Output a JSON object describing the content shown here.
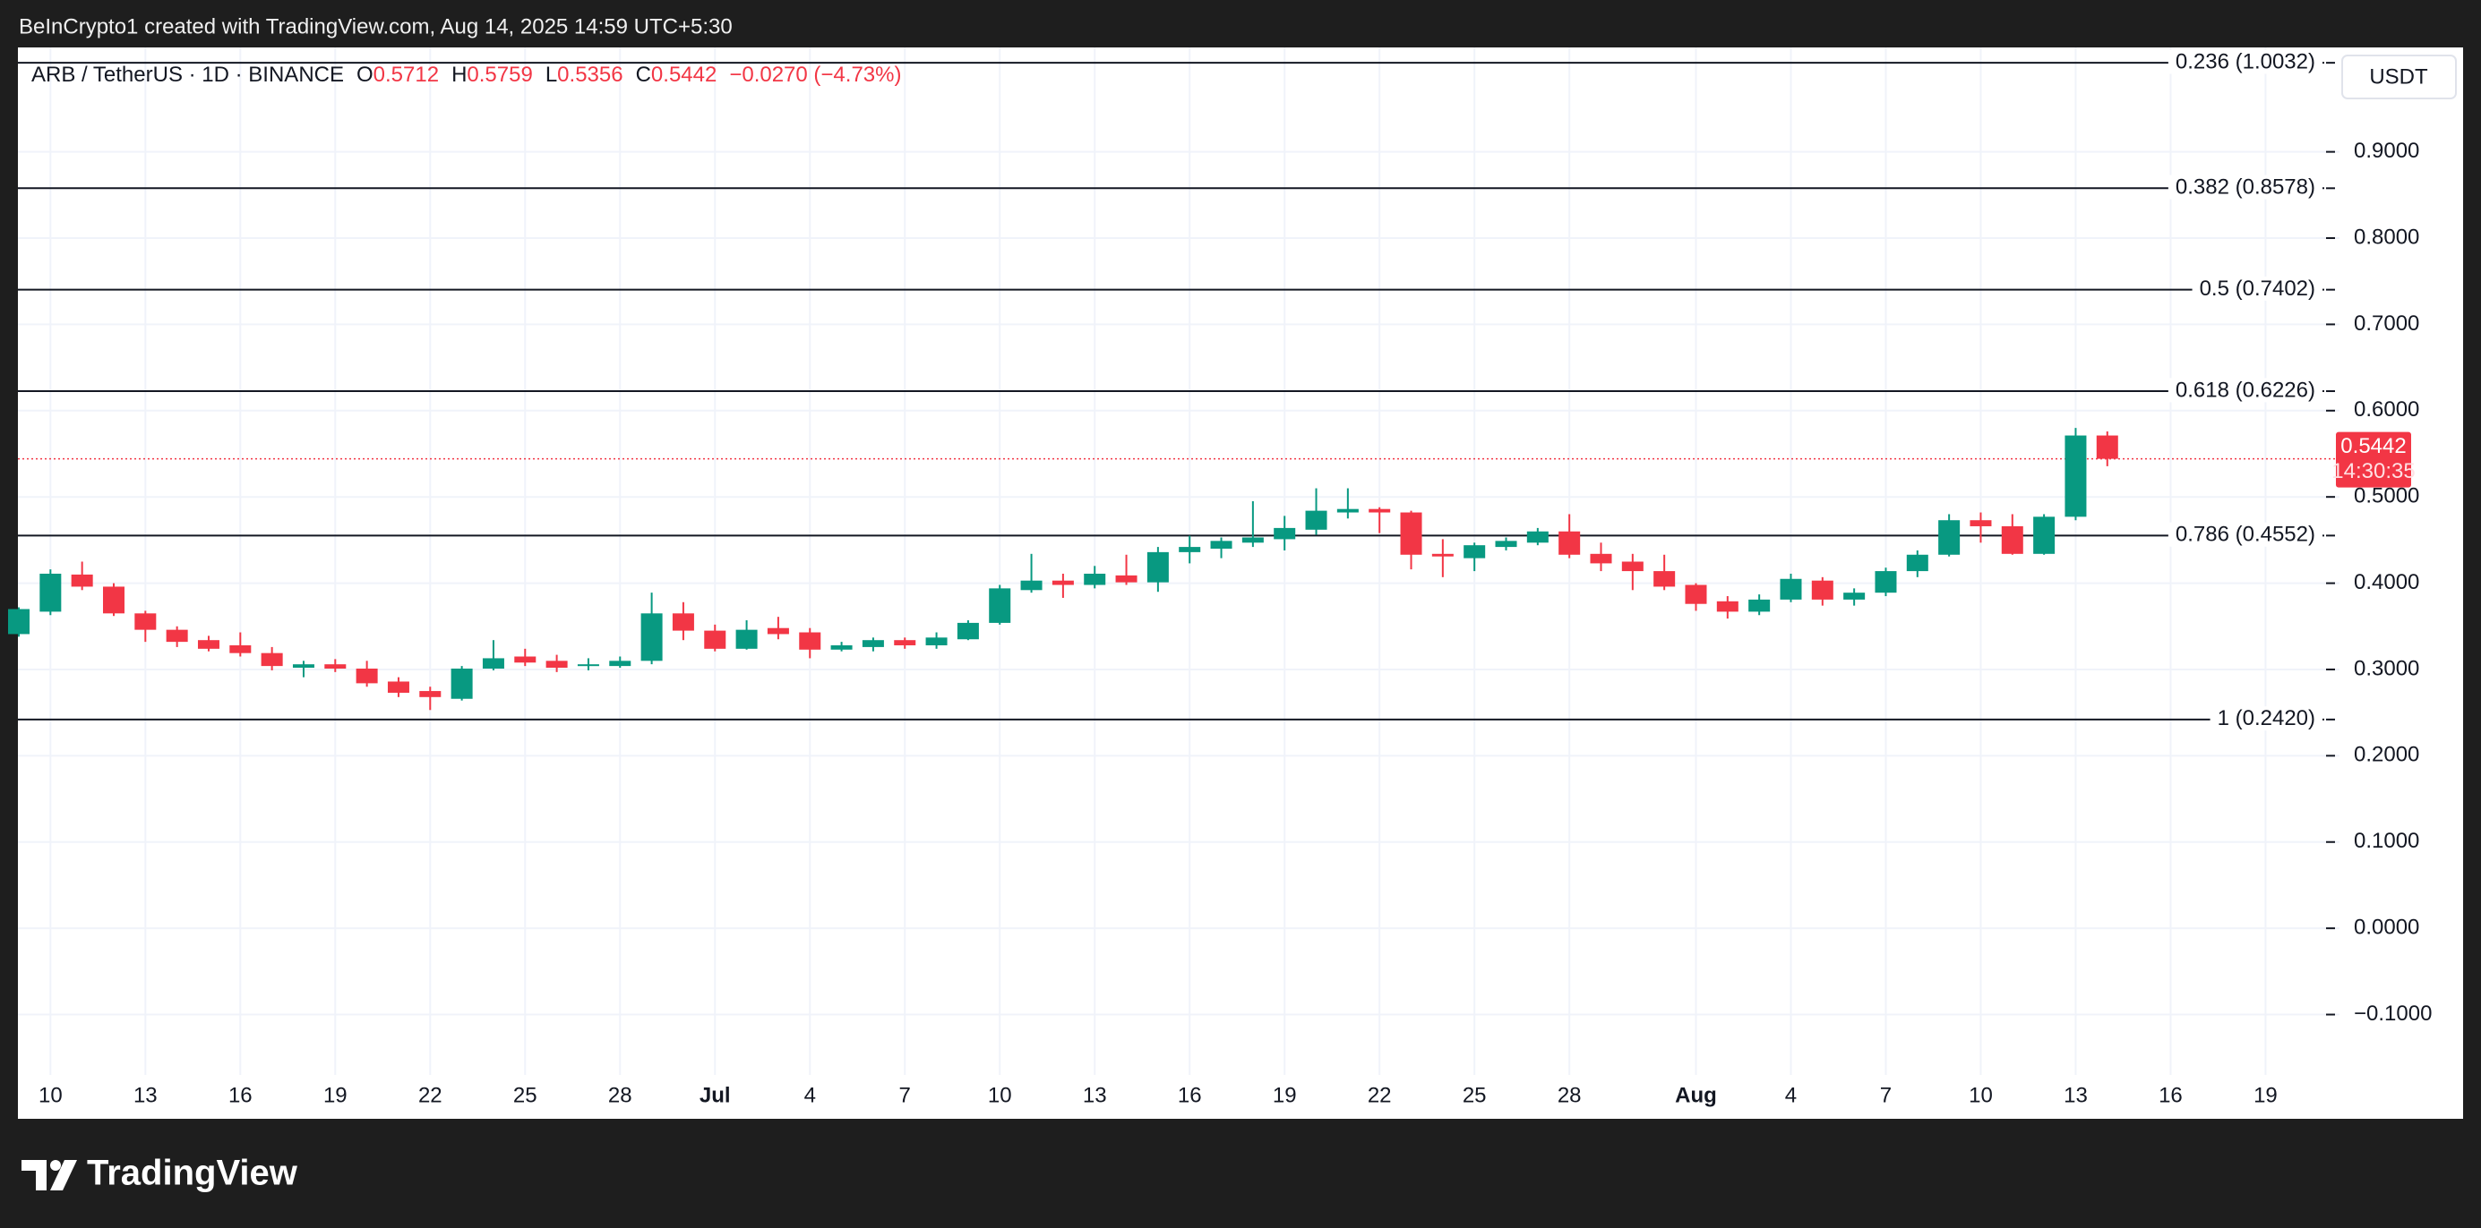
{
  "header": {
    "credit": "BeInCrypto1 created with TradingView.com, Aug 14, 2025 14:59 UTC+5:30"
  },
  "chart_data": {
    "type": "candlestick",
    "symbol": "ARB / TetherUS · 1D · BINANCE",
    "ohlc_legend": [
      {
        "key": "O",
        "value": "0.5712"
      },
      {
        "key": "H",
        "value": "0.5759"
      },
      {
        "key": "L",
        "value": "0.5356"
      },
      {
        "key": "C",
        "value": "0.5442"
      }
    ],
    "change": "−0.0270 (−4.73%)",
    "currency": "USDT",
    "up_color": "#089981",
    "down_color": "#f23645",
    "grid": true,
    "categories": [
      null,
      "10",
      null,
      null,
      "13",
      null,
      null,
      "16",
      null,
      null,
      "19",
      null,
      null,
      "22",
      null,
      null,
      "25",
      null,
      null,
      "28",
      null,
      null,
      "Jul",
      null,
      null,
      "4",
      null,
      null,
      "7",
      null,
      null,
      "10",
      null,
      null,
      "13",
      null,
      null,
      "16",
      null,
      null,
      "19",
      null,
      null,
      "22",
      null,
      null,
      "25",
      null,
      null,
      "28",
      null,
      null,
      null,
      "Aug",
      null,
      null,
      "4",
      null,
      null,
      "7",
      null,
      null,
      "10",
      null,
      null,
      "13",
      null,
      null,
      "16",
      null,
      null,
      "19"
    ],
    "open": [
      0.341,
      0.367,
      0.41,
      0.396,
      0.365,
      0.346,
      0.334,
      0.328,
      0.319,
      0.302,
      0.306,
      0.301,
      0.286,
      0.275,
      0.266,
      0.301,
      0.315,
      0.31,
      0.304,
      0.304,
      0.31,
      0.365,
      0.345,
      0.324,
      0.348,
      0.343,
      0.323,
      0.326,
      0.334,
      0.328,
      0.335,
      0.354,
      0.392,
      0.403,
      0.398,
      0.409,
      0.401,
      0.436,
      0.44,
      0.447,
      0.451,
      0.462,
      0.482,
      0.486,
      0.482,
      0.434,
      0.429,
      0.442,
      0.447,
      0.46,
      0.434,
      0.425,
      0.414,
      0.398,
      0.379,
      0.367,
      0.381,
      0.403,
      0.381,
      0.389,
      0.414,
      0.433,
      0.473,
      0.466,
      0.434,
      0.477,
      0.5712,
      null,
      null,
      null,
      null,
      null
    ],
    "high": [
      0.372,
      0.416,
      0.425,
      0.4,
      0.368,
      0.35,
      0.339,
      0.343,
      0.326,
      0.31,
      0.312,
      0.31,
      0.291,
      0.28,
      0.304,
      0.334,
      0.324,
      0.317,
      0.313,
      0.315,
      0.389,
      0.378,
      0.352,
      0.357,
      0.361,
      0.348,
      0.332,
      0.337,
      0.337,
      0.343,
      0.357,
      0.398,
      0.434,
      0.411,
      0.42,
      0.433,
      0.442,
      0.455,
      0.453,
      0.495,
      0.478,
      0.51,
      0.51,
      0.488,
      0.484,
      0.451,
      0.447,
      0.453,
      0.464,
      0.48,
      0.447,
      0.434,
      0.433,
      0.4,
      0.385,
      0.387,
      0.411,
      0.407,
      0.394,
      0.418,
      0.438,
      0.48,
      0.482,
      0.48,
      0.48,
      0.58,
      0.5759,
      null,
      null,
      null,
      null,
      null
    ],
    "low": [
      0.338,
      0.363,
      0.392,
      0.362,
      0.332,
      0.326,
      0.321,
      0.315,
      0.299,
      0.291,
      0.297,
      0.28,
      0.268,
      0.253,
      0.264,
      0.299,
      0.304,
      0.297,
      0.299,
      0.302,
      0.306,
      0.334,
      0.321,
      0.323,
      0.335,
      0.313,
      0.321,
      0.321,
      0.324,
      0.324,
      0.334,
      0.352,
      0.389,
      0.383,
      0.394,
      0.398,
      0.39,
      0.423,
      0.429,
      0.442,
      0.438,
      0.456,
      0.475,
      0.458,
      0.416,
      0.407,
      0.414,
      0.438,
      0.444,
      0.429,
      0.414,
      0.392,
      0.392,
      0.368,
      0.359,
      0.363,
      0.378,
      0.374,
      0.374,
      0.385,
      0.407,
      0.431,
      0.447,
      0.433,
      0.433,
      0.473,
      0.5356,
      null,
      null,
      null,
      null,
      null
    ],
    "close": [
      0.37,
      0.411,
      0.396,
      0.365,
      0.346,
      0.332,
      0.324,
      0.319,
      0.304,
      0.306,
      0.301,
      0.284,
      0.273,
      0.268,
      0.301,
      0.313,
      0.308,
      0.302,
      0.306,
      0.31,
      0.365,
      0.345,
      0.324,
      0.346,
      0.341,
      0.323,
      0.328,
      0.334,
      0.328,
      0.337,
      0.354,
      0.394,
      0.403,
      0.398,
      0.411,
      0.401,
      0.436,
      0.442,
      0.449,
      0.453,
      0.464,
      0.484,
      0.486,
      0.482,
      0.433,
      0.431,
      0.444,
      0.449,
      0.46,
      0.433,
      0.423,
      0.414,
      0.396,
      0.376,
      0.367,
      0.381,
      0.405,
      0.381,
      0.389,
      0.414,
      0.433,
      0.473,
      0.466,
      0.434,
      0.477,
      0.5712,
      0.5442,
      null,
      null,
      null,
      null,
      null
    ],
    "ylim": [
      -0.17,
      1.021
    ],
    "yticks": [
      {
        "value": -0.1,
        "label": "−0.1000"
      },
      {
        "value": 0,
        "label": "0.0000"
      },
      {
        "value": 0.1,
        "label": "0.1000"
      },
      {
        "value": 0.2,
        "label": "0.2000"
      },
      {
        "value": 0.3,
        "label": "0.3000"
      },
      {
        "value": 0.4,
        "label": "0.4000"
      },
      {
        "value": 0.5,
        "label": "0.5000"
      },
      {
        "value": 0.6,
        "label": "0.6000"
      },
      {
        "value": 0.7,
        "label": "0.7000"
      },
      {
        "value": 0.8,
        "label": "0.8000"
      },
      {
        "value": 0.9,
        "label": "0.9000"
      }
    ],
    "fib_levels": [
      {
        "value": 1.0032,
        "label": "0.236 (1.0032)"
      },
      {
        "value": 0.8578,
        "label": "0.382 (0.8578)"
      },
      {
        "value": 0.7402,
        "label": "0.5 (0.7402)"
      },
      {
        "value": 0.6226,
        "label": "0.618 (0.6226)"
      },
      {
        "value": 0.4552,
        "label": "0.786 (0.4552)"
      },
      {
        "value": 0.242,
        "label": "1 (0.2420)"
      }
    ],
    "current_price": {
      "value": 0.5442,
      "countdown": "14:30:35"
    }
  },
  "footer": {
    "brand": "TradingView"
  }
}
